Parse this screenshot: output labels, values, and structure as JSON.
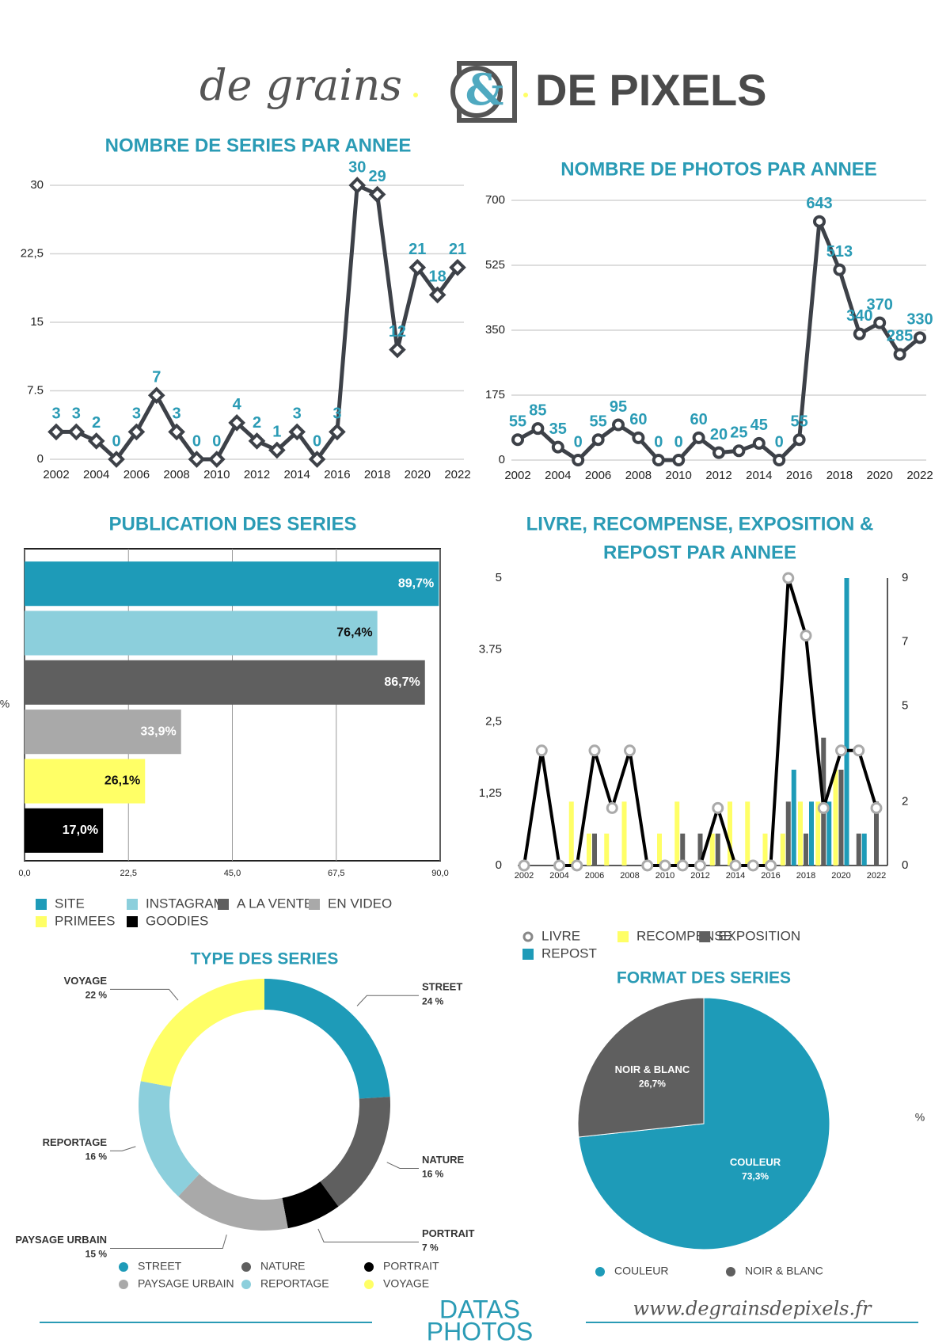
{
  "header": {
    "brand_left": "de grains",
    "brand_mark": "&",
    "brand_right": "DE PIXELS"
  },
  "footer": {
    "line1": "DATAS",
    "line2": "PHOTOS",
    "url": "www.degrainsdepixels.fr"
  },
  "chart_data": [
    {
      "type": "line",
      "title": "NOMBRE DE SERIES PAR ANNEE",
      "color": "#3d4148",
      "label_color": "#2a9bb5",
      "marker": "diamond",
      "grid": true,
      "x": [
        2002,
        2003,
        2004,
        2005,
        2006,
        2007,
        2008,
        2009,
        2010,
        2011,
        2012,
        2013,
        2014,
        2015,
        2016,
        2017,
        2018,
        2019,
        2020,
        2021,
        2022
      ],
      "values": [
        3,
        3,
        2,
        0,
        3,
        7,
        3,
        0,
        0,
        4,
        2,
        1,
        3,
        0,
        3,
        30,
        29,
        12,
        21,
        18,
        21
      ],
      "xlim": [
        2002,
        2022
      ],
      "xticks": [
        2002,
        2004,
        2006,
        2008,
        2010,
        2012,
        2014,
        2016,
        2018,
        2020,
        2022
      ],
      "ylim": [
        0,
        30
      ],
      "yticks": [
        0,
        7.5,
        15,
        {
          "value": 22.5,
          "label": "22,5"
        },
        30
      ]
    },
    {
      "type": "line",
      "title": "NOMBRE DE PHOTOS PAR ANNEE",
      "color": "#3d4148",
      "label_color": "#2a9bb5",
      "marker": "circle",
      "grid": true,
      "x": [
        2002,
        2003,
        2004,
        2005,
        2006,
        2007,
        2008,
        2009,
        2010,
        2011,
        2012,
        2013,
        2014,
        2015,
        2016,
        2017,
        2018,
        2019,
        2020,
        2021,
        2022
      ],
      "values": [
        55,
        85,
        35,
        0,
        55,
        95,
        60,
        0,
        0,
        60,
        20,
        25,
        45,
        0,
        55,
        643,
        513,
        340,
        370,
        285,
        330
      ],
      "xlim": [
        2002,
        2022
      ],
      "xticks": [
        2002,
        2004,
        2006,
        2008,
        2010,
        2012,
        2014,
        2016,
        2018,
        2020,
        2022
      ],
      "ylim": [
        0,
        700
      ],
      "yticks": [
        0,
        175,
        350,
        525,
        700
      ]
    },
    {
      "type": "bar",
      "orientation": "horizontal",
      "title": "PUBLICATION DES SERIES",
      "ylabel": "%",
      "grid": true,
      "categories": [
        "SITE",
        "INSTAGRAM",
        "A LA VENTE",
        "EN VIDEO",
        "PRIMEES",
        "GOODIES"
      ],
      "values": [
        89.7,
        76.4,
        86.7,
        33.9,
        26.1,
        17.0
      ],
      "value_labels": [
        "89,7%",
        "76,4%",
        "86,7%",
        "33,9%",
        "26,1%",
        "17,0%"
      ],
      "colors": [
        "#1e9bb8",
        "#8ccfdc",
        "#5f5f5f",
        "#a9a9a9",
        "#ffff66",
        "#000000"
      ],
      "xlim": [
        0,
        90
      ],
      "xticks": [
        {
          "value": 0,
          "label": "0,0"
        },
        {
          "value": 22.5,
          "label": "22,5"
        },
        {
          "value": 45,
          "label": "45,0"
        },
        {
          "value": 67.5,
          "label": "67,5"
        },
        {
          "value": 90,
          "label": "90,0"
        }
      ]
    },
    {
      "type": "combo",
      "title": [
        "LIVRE, RECOMPENSE, EXPOSITION &",
        "REPOST PAR ANNEE"
      ],
      "x": [
        2002,
        2003,
        2004,
        2005,
        2006,
        2007,
        2008,
        2009,
        2010,
        2011,
        2012,
        2013,
        2014,
        2015,
        2016,
        2017,
        2018,
        2019,
        2020,
        2021,
        2022
      ],
      "xlim": [
        2002,
        2022
      ],
      "xticks": [
        2002,
        2004,
        2006,
        2008,
        2010,
        2012,
        2014,
        2016,
        2018,
        2020,
        2022
      ],
      "ylim": [
        0,
        5
      ],
      "yticks": [
        0,
        {
          "value": 1.25,
          "label": "1,25"
        },
        {
          "value": 2.5,
          "label": "2,5"
        },
        3.75,
        5
      ],
      "y2lim": [
        0,
        9
      ],
      "y2ticks": [
        0,
        2,
        5,
        7,
        9
      ],
      "series": [
        {
          "name": "LIVRE",
          "type": "line",
          "color": "#000000",
          "values": [
            0,
            2,
            0,
            0,
            2,
            1,
            2,
            0,
            0,
            0,
            0,
            1,
            0,
            0,
            0,
            5,
            4,
            1,
            2,
            2,
            1
          ]
        },
        {
          "name": "RECOMPENSE",
          "type": "bar",
          "axis": "y2",
          "color": "#ffff66",
          "values": [
            0,
            0,
            0,
            2,
            1,
            1,
            2,
            0,
            1,
            2,
            0,
            1,
            2,
            2,
            1,
            1,
            2,
            2,
            3,
            0,
            0
          ]
        },
        {
          "name": "EXPOSITION",
          "type": "bar",
          "axis": "y2",
          "color": "#5f5f5f",
          "values": [
            0,
            0,
            0,
            0,
            1,
            0,
            0,
            0,
            0,
            1,
            1,
            1,
            0,
            0,
            0,
            2,
            1,
            4,
            3,
            1,
            2
          ]
        },
        {
          "name": "REPOST",
          "type": "bar",
          "axis": "y2",
          "color": "#1e9bb8",
          "values": [
            0,
            0,
            0,
            0,
            0,
            0,
            0,
            0,
            0,
            0,
            0,
            0,
            0,
            0,
            0,
            3,
            2,
            2,
            9,
            1,
            0
          ]
        }
      ]
    },
    {
      "type": "pie",
      "donut": true,
      "title": "TYPE DES SERIES",
      "categories": [
        "STREET",
        "NATURE",
        "PORTRAIT",
        "PAYSAGE URBAIN",
        "REPORTAGE",
        "VOYAGE"
      ],
      "values": [
        24,
        16,
        7,
        15,
        16,
        22
      ],
      "value_labels": [
        "24 %",
        "16 %",
        "7 %",
        "15 %",
        "16 %",
        "22 %"
      ],
      "colors": [
        "#1e9bb8",
        "#5f5f5f",
        "#000000",
        "#a9a9a9",
        "#8ccfdc",
        "#ffff66"
      ]
    },
    {
      "type": "pie",
      "title": "FORMAT DES SERIES",
      "annotation": "%",
      "categories": [
        "COULEUR",
        "NOIR & BLANC"
      ],
      "values": [
        73.3,
        26.7
      ],
      "value_labels": [
        "73,3%",
        "26,7%"
      ],
      "colors": [
        "#1e9bb8",
        "#5f5f5f"
      ]
    }
  ]
}
